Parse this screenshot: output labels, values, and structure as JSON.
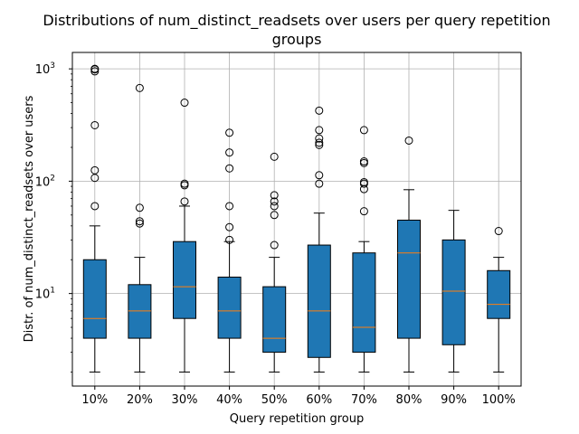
{
  "chart_data": {
    "type": "box",
    "title_line1": "Distributions of num_distinct_readsets over users per query repetition",
    "title_line2": "groups",
    "xlabel": "Query repetition group",
    "ylabel": "Distr. of num_distinct_readsets over users",
    "yscale": "log",
    "ylim": [
      1.5,
      1400
    ],
    "yticks": [
      {
        "value": 10,
        "base": "10",
        "exp": "1"
      },
      {
        "value": 100,
        "base": "10",
        "exp": "2"
      },
      {
        "value": 1000,
        "base": "10",
        "exp": "3"
      }
    ],
    "grid": true,
    "box_color": "#1f77b4",
    "median_color": "#ff7f0e",
    "categories": [
      "10%",
      "20%",
      "30%",
      "40%",
      "50%",
      "60%",
      "70%",
      "80%",
      "90%",
      "100%"
    ],
    "boxes": [
      {
        "whislo": 2,
        "q1": 4,
        "med": 6,
        "q3": 20,
        "whishi": 40,
        "fliers": [
          60,
          107,
          125,
          315,
          950,
          990,
          1000
        ]
      },
      {
        "whislo": 2,
        "q1": 4,
        "med": 7,
        "q3": 12,
        "whishi": 21,
        "fliers": [
          42,
          44,
          58,
          675
        ]
      },
      {
        "whislo": 2,
        "q1": 6,
        "med": 11.5,
        "q3": 29,
        "whishi": 60,
        "fliers": [
          66,
          92,
          95,
          500
        ]
      },
      {
        "whislo": 2,
        "q1": 4,
        "med": 7,
        "q3": 14,
        "whishi": 29,
        "fliers": [
          30,
          39,
          60,
          130,
          180,
          270
        ]
      },
      {
        "whislo": 2,
        "q1": 3,
        "med": 4,
        "q3": 11.5,
        "whishi": 21,
        "fliers": [
          27,
          50,
          60,
          66,
          75,
          165
        ]
      },
      {
        "whislo": 2,
        "q1": 2.7,
        "med": 7,
        "q3": 27,
        "whishi": 52,
        "fliers": [
          95,
          113,
          210,
          220,
          240,
          285,
          425
        ]
      },
      {
        "whislo": 2,
        "q1": 3,
        "med": 5,
        "q3": 23,
        "whishi": 29,
        "fliers": [
          54,
          85,
          95,
          98,
          145,
          150,
          285
        ]
      },
      {
        "whislo": 2,
        "q1": 4,
        "med": 23,
        "q3": 45,
        "whishi": 84,
        "fliers": [
          230
        ]
      },
      {
        "whislo": 2,
        "q1": 3.5,
        "med": 10.5,
        "q3": 30,
        "whishi": 55,
        "fliers": []
      },
      {
        "whislo": 2,
        "q1": 6,
        "med": 8,
        "q3": 16,
        "whishi": 21,
        "fliers": [
          36
        ]
      }
    ]
  }
}
